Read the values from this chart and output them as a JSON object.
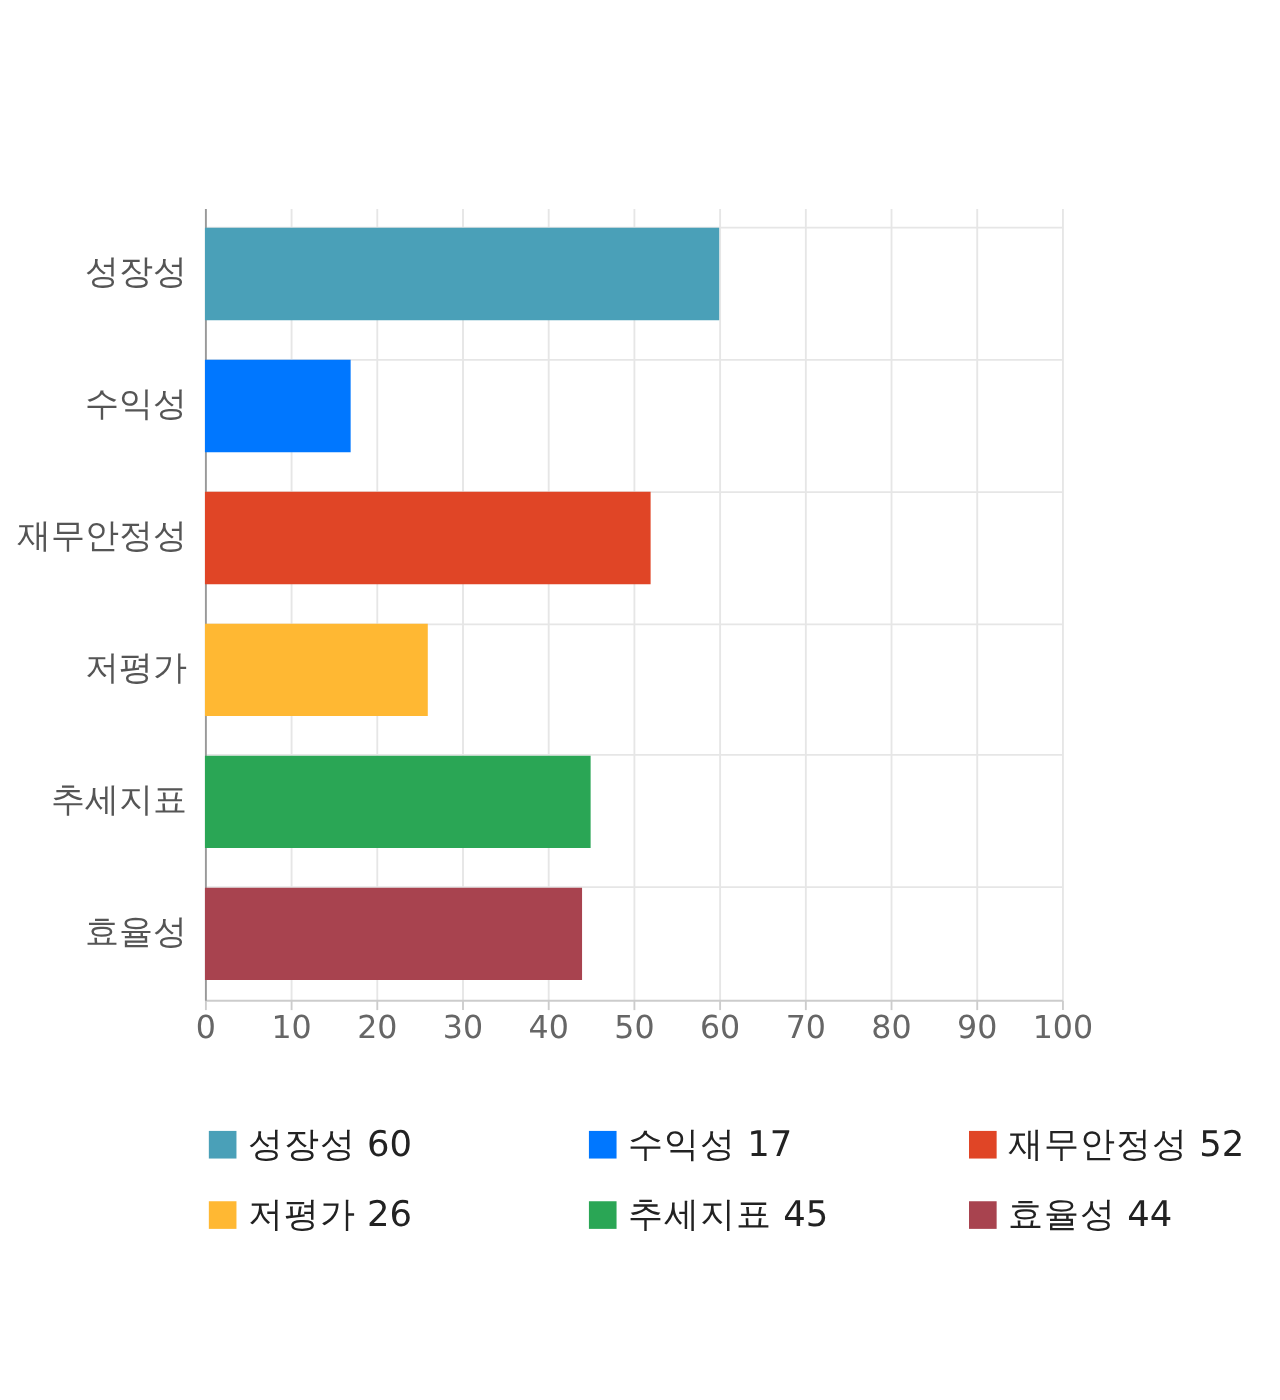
{
  "chart_data": {
    "type": "bar",
    "orientation": "horizontal",
    "categories": [
      "성장성",
      "수익성",
      "재무안정성",
      "저평가",
      "추세지표",
      "효율성"
    ],
    "series": [
      {
        "name": "성장성 60",
        "color": "#4aa0b8",
        "values": [
          60,
          null,
          null,
          null,
          null,
          null
        ]
      },
      {
        "name": "수익성 17",
        "color": "#0077ff",
        "values": [
          null,
          17,
          null,
          null,
          null,
          null
        ]
      },
      {
        "name": "재무안정성 52",
        "color": "#e04526",
        "values": [
          null,
          null,
          52,
          null,
          null,
          null
        ]
      },
      {
        "name": "저평가 26",
        "color": "#ffb833",
        "values": [
          null,
          null,
          null,
          26,
          null,
          null
        ]
      },
      {
        "name": "추세지표 45",
        "color": "#2aa655",
        "values": [
          null,
          null,
          null,
          null,
          45,
          null
        ]
      },
      {
        "name": "효율성 44",
        "color": "#a8434f",
        "values": [
          null,
          null,
          null,
          null,
          null,
          44
        ]
      }
    ],
    "xlim": [
      0,
      100
    ],
    "xticks": [
      0,
      10,
      20,
      30,
      40,
      50,
      60,
      70,
      80,
      90,
      100
    ],
    "grid": true,
    "legend": "bottom"
  }
}
